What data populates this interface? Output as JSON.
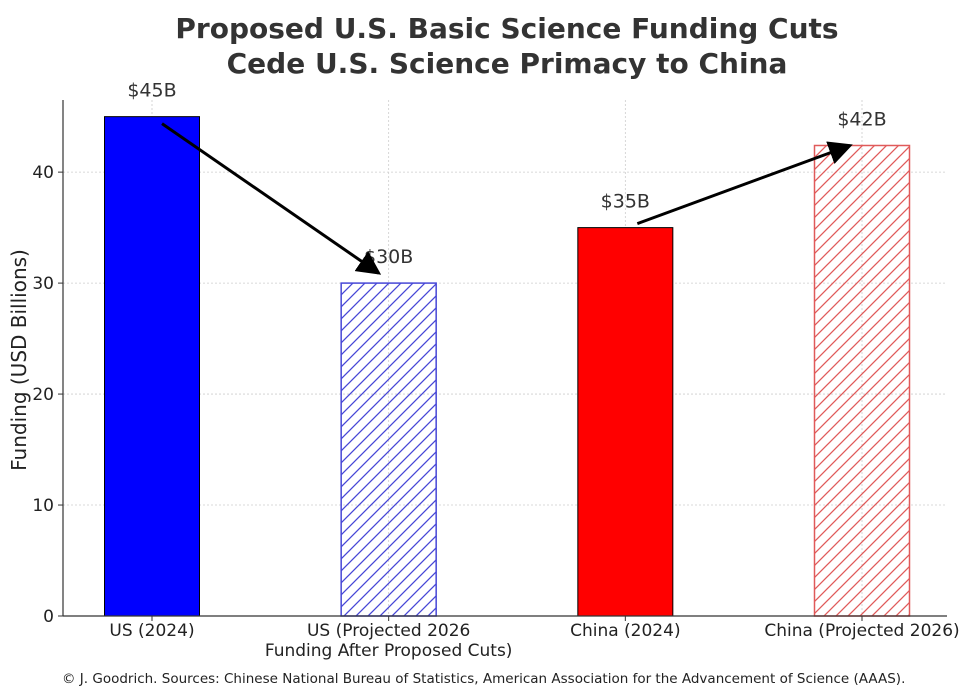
{
  "chart_data": {
    "type": "bar",
    "title_lines": [
      "Proposed U.S. Basic Science Funding Cuts",
      "Cede U.S. Science Primacy to China"
    ],
    "ylabel": "Funding (USD Billions)",
    "xlabel": "",
    "ylim": [
      0,
      46.5
    ],
    "yticks": [
      "0",
      "10",
      "20",
      "30",
      "40"
    ],
    "ytick_values": [
      0,
      10,
      20,
      30,
      40
    ],
    "grid": true,
    "categories": [
      [
        "US (2024)"
      ],
      [
        "US (Projected 2026",
        "Funding After Proposed Cuts)"
      ],
      [
        "China (2024)"
      ],
      [
        "China (Projected 2026)"
      ]
    ],
    "values": [
      45,
      30,
      35,
      42.4
    ],
    "data_labels": [
      "$45B",
      "$30B",
      "$35B",
      "$42B"
    ],
    "bar_styles": [
      {
        "fill": "#0000ff",
        "hatch": false,
        "color": "#0000ff"
      },
      {
        "fill": "none",
        "hatch": true,
        "color": "#4747d6"
      },
      {
        "fill": "#ff0000",
        "hatch": false,
        "color": "#ff0000"
      },
      {
        "fill": "none",
        "hatch": true,
        "color": "#e05a5a"
      }
    ],
    "arrows": [
      {
        "from_bar": 0,
        "to_bar": 1
      },
      {
        "from_bar": 2,
        "to_bar": 3
      }
    ]
  },
  "footer": {
    "credit": "© J. Goodrich. Sources: Chinese National Bureau of Statistics, American Association for the Advancement of Science (AAAS)."
  }
}
